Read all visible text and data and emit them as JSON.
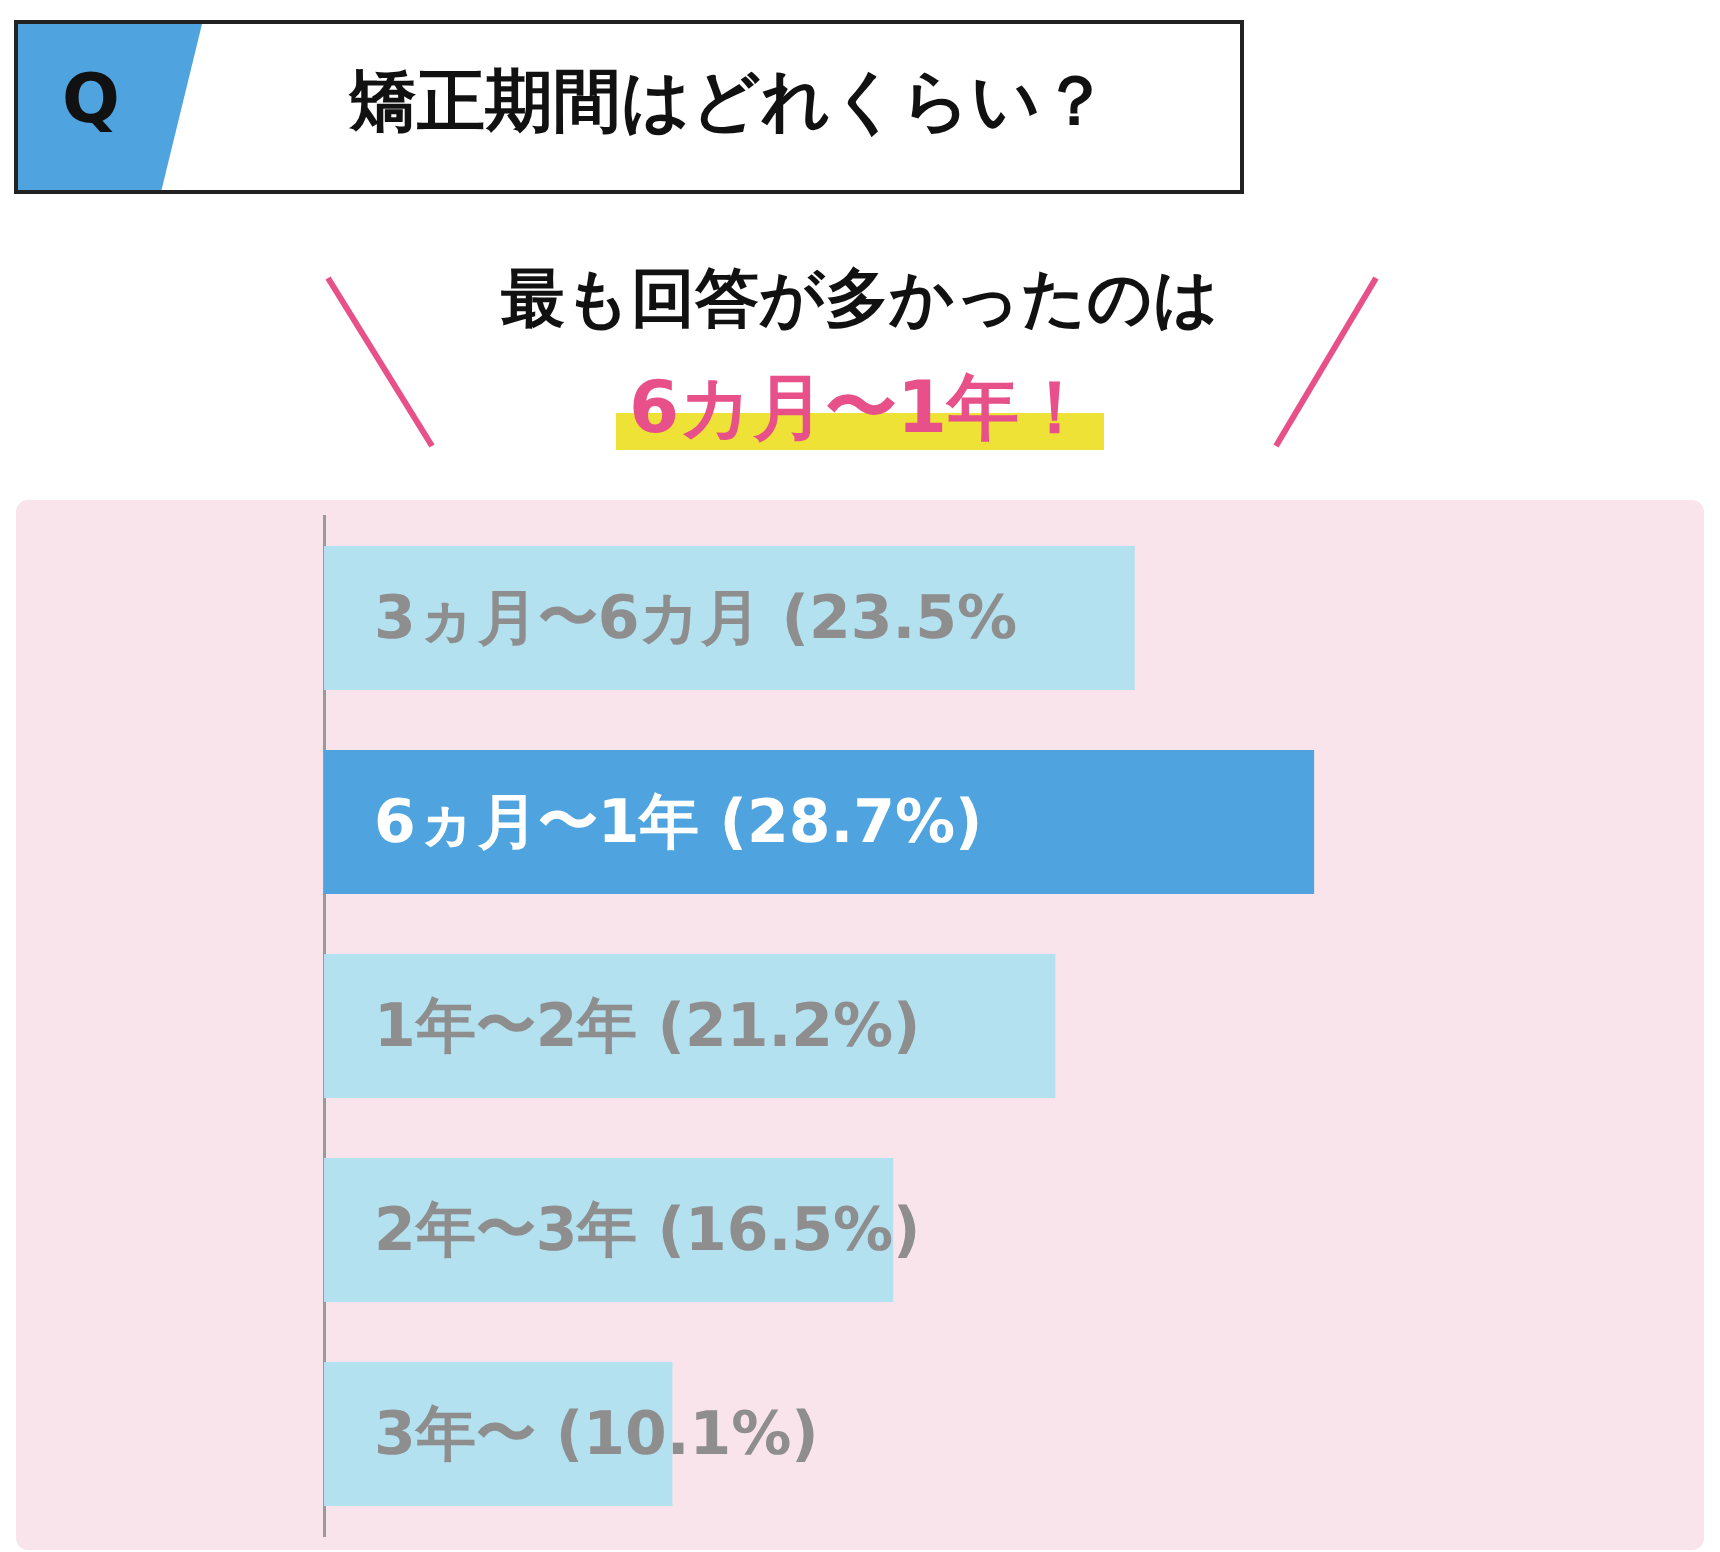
{
  "chart_data": {
    "type": "bar",
    "orientation": "horizontal",
    "title": "矯正期間はどれくらい？",
    "subtitle": "最も回答が多かったのは",
    "annotations": [
      "Q",
      "6カ月〜1年！"
    ],
    "categories": [
      "3ヵ月〜6カ月",
      "6ヵ月〜1年",
      "1年〜2年",
      "2年〜3年",
      "3年〜"
    ],
    "values": [
      23.5,
      28.7,
      21.2,
      16.5,
      10.1
    ],
    "value_labels": [
      "(23.5%",
      "(28.7%)",
      "(21.2%)",
      "(16.5%)",
      "(10.1%)"
    ],
    "colors": [
      "#b3e1ef",
      "#4fa3de",
      "#b3e1ef",
      "#b3e1ef",
      "#b3e1ef"
    ],
    "tick_labels": false,
    "grid": false,
    "legend": false
  }
}
